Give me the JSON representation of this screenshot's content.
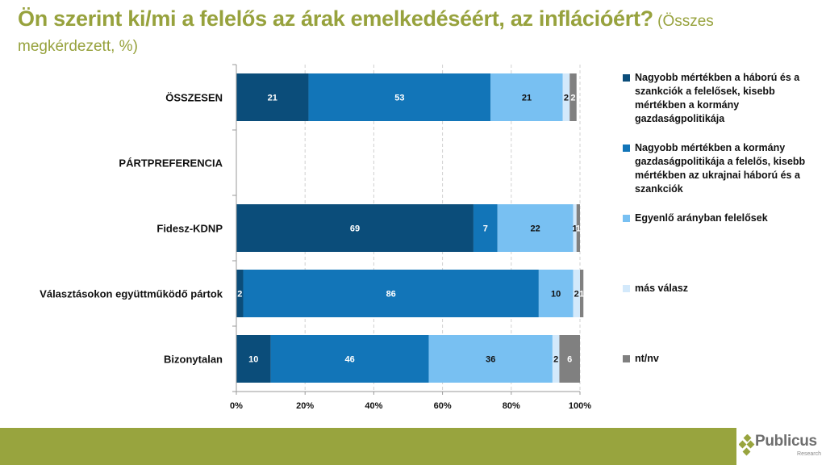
{
  "header": {
    "title": "Ön szerint ki/mi a felelős az árak emelkedéséért, az inflációért?",
    "subtitle_part1": " (Összes",
    "subtitle_part2": "megkérdezett, %)"
  },
  "colors": {
    "series": [
      "#0B4D7A",
      "#1275B8",
      "#78C0F2",
      "#D3E9FB",
      "#808080"
    ],
    "title": "#97A23D",
    "footer": "#98A43E"
  },
  "chart_data": {
    "type": "bar",
    "orientation": "horizontal",
    "stacked": true,
    "title": "Ön szerint ki/mi a felelős az árak emelkedéséért, az inflációért? (Összes megkérdezett, %)",
    "xlabel": "",
    "ylabel": "",
    "xlim": [
      0,
      100
    ],
    "x_ticks": [
      "0%",
      "20%",
      "40%",
      "60%",
      "80%",
      "100%"
    ],
    "grid": "vertical dashed",
    "legend_position": "right",
    "categories": [
      "ÖSSZESEN",
      "PÁRTPREFERENCIA",
      "Fidesz-KDNP",
      "Választásokon együttműködő pártok",
      "Bizonytalan"
    ],
    "series": [
      {
        "name": "Nagyobb mértékben a háború és a szankciók a felelősek, kisebb mértékben a kormány gazdaságpolitikája",
        "values": [
          21,
          null,
          69,
          2,
          10
        ]
      },
      {
        "name": "Nagyobb mértékben a kormány gazdaságpolitikája a felelős, kisebb mértékben az ukrajnai háború és a szankciók",
        "values": [
          53,
          null,
          7,
          86,
          46
        ]
      },
      {
        "name": "Egyenlő arányban felelősek",
        "values": [
          21,
          null,
          22,
          10,
          36
        ]
      },
      {
        "name": "más válasz",
        "values": [
          2,
          null,
          1,
          2,
          2
        ]
      },
      {
        "name": "nt/nv",
        "values": [
          2,
          null,
          1,
          1,
          6
        ]
      }
    ]
  },
  "legend": {
    "items": [
      {
        "label": "Nagyobb mértékben a háború és a szankciók a felelősek, kisebb mértékben a kormány gazdaságpolitikája"
      },
      {
        "label": "Nagyobb mértékben a kormány gazdaságpolitikája a felelős, kisebb mértékben az ukrajnai háború és a szankciók"
      },
      {
        "label": "Egyenlő arányban felelősek"
      },
      {
        "label": "más válasz"
      },
      {
        "label": "nt/nv"
      }
    ]
  },
  "logo": {
    "name": "Publicus",
    "sub": "Research"
  }
}
